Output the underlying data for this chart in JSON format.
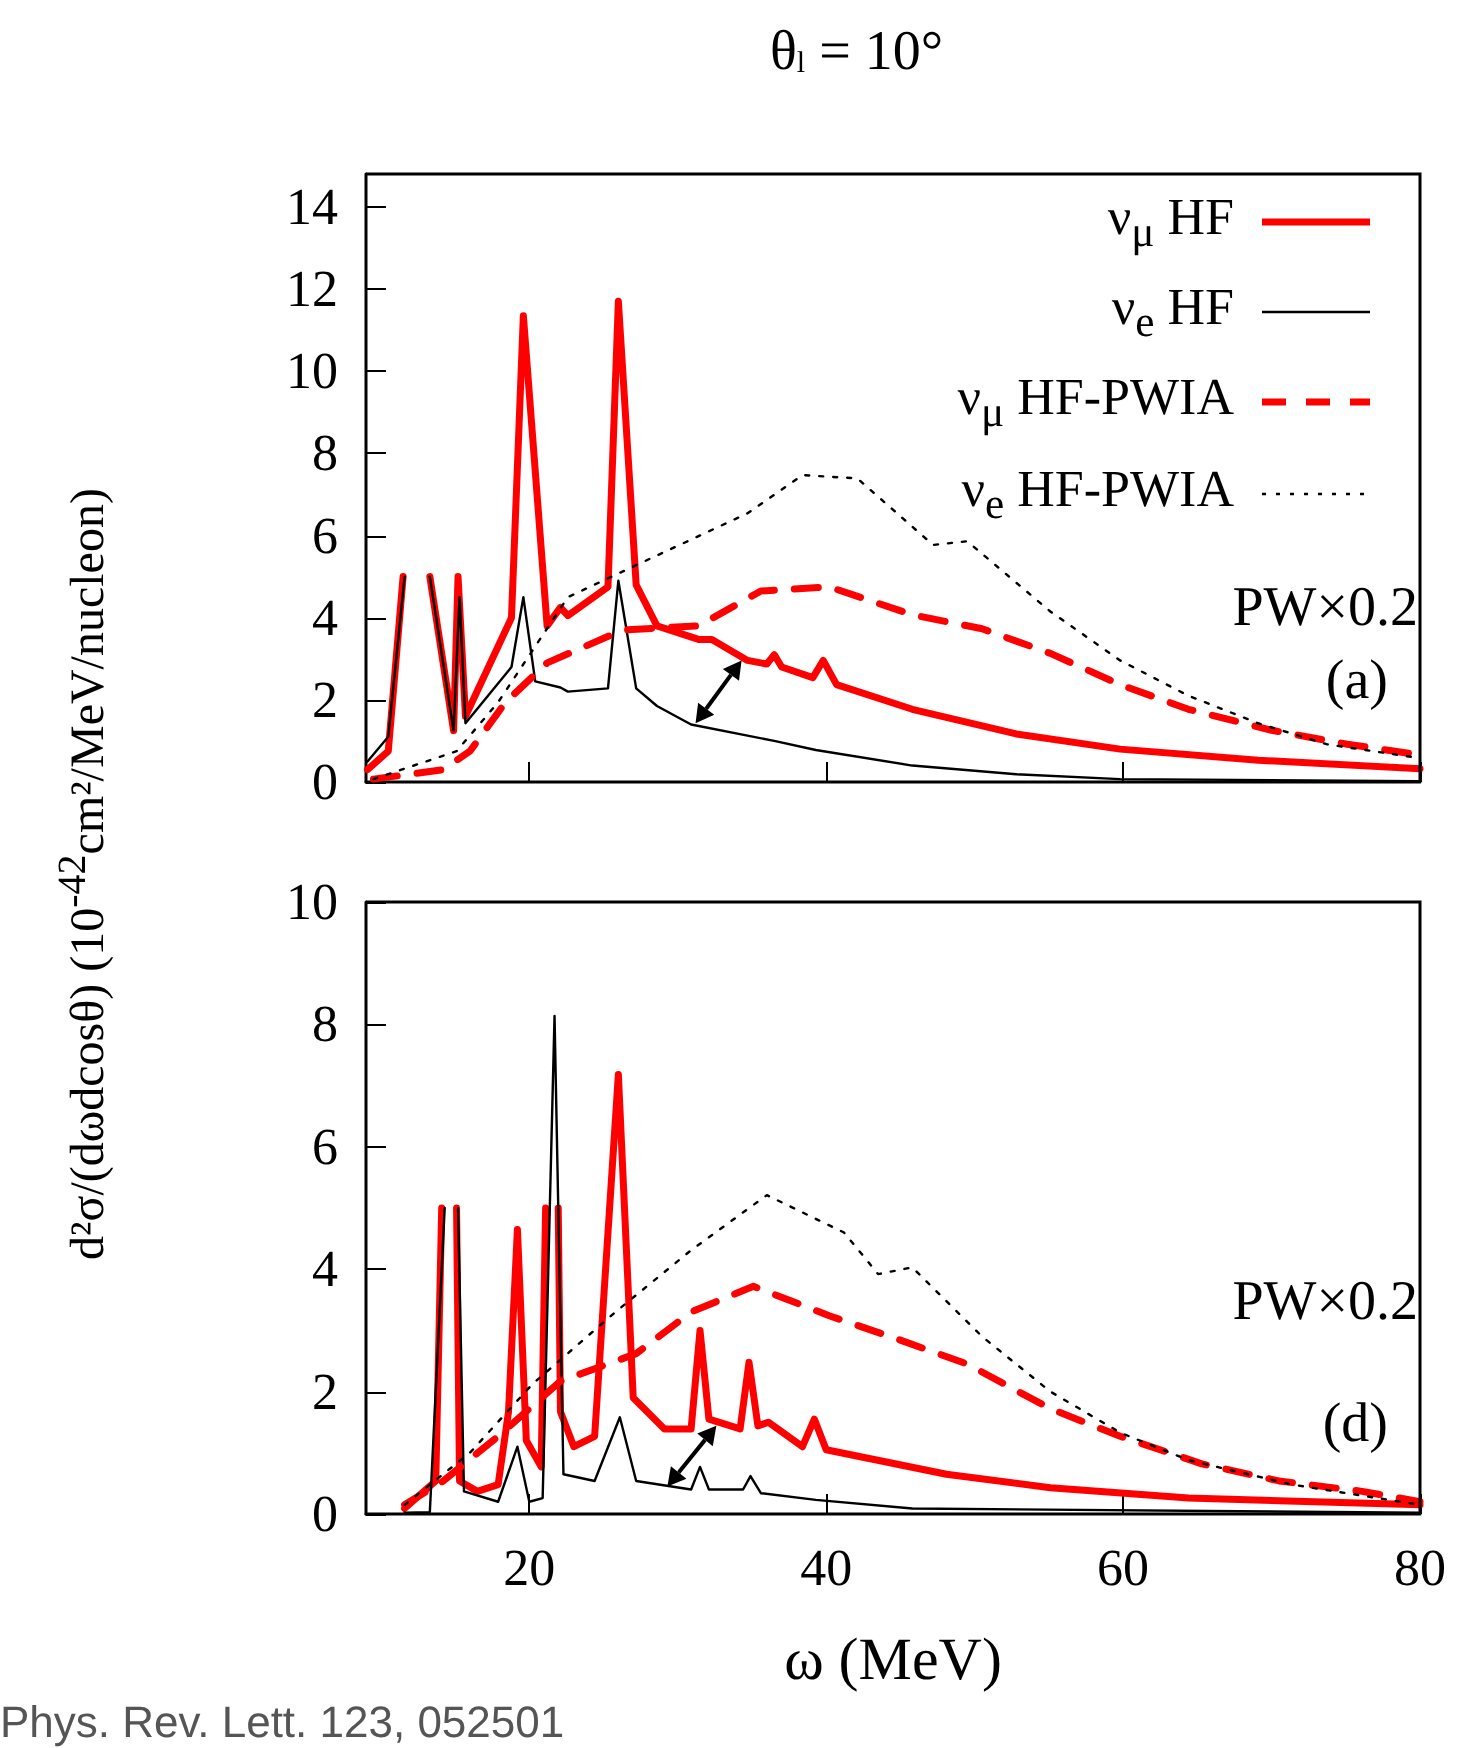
{
  "chart_data": [
    {
      "type": "line",
      "title": "θ$_{l}$ = 10°",
      "ylabel": "d²σ/(dωdcosθ) (10$^{-42}$cm²/MeV/nucleon)",
      "xlim": [
        9,
        80
      ],
      "xticks": [
        20,
        40,
        60,
        80
      ],
      "ylim": [
        0,
        14.8
      ],
      "yticks": [
        0,
        2,
        4,
        6,
        8,
        10,
        12,
        14
      ],
      "tick_labels": "y",
      "grid": false,
      "legend": "top right",
      "marker": "none",
      "annotations": [
        "PW×0.2",
        "(a)"
      ],
      "series": [
        {
          "name": "ν$_{μ}$ HF",
          "color": "#ff0000",
          "line_style": "solid",
          "x": [
            9.1,
            10.5,
            11.5,
            11.8,
            12.7,
            13.3,
            14.9,
            15.2,
            15.7,
            18.8,
            19.6,
            21.2,
            22.1,
            22.6,
            25.3,
            26.0,
            27.2,
            28.6,
            31.4,
            32.3,
            34.7,
            36.0,
            36.5,
            37.0,
            39.1,
            39.8,
            40.7,
            45.8,
            52.8,
            59.8,
            69.1,
            80
          ],
          "values": [
            0.3,
            0.75,
            5.0,
            null,
            null,
            5.0,
            1.25,
            5.0,
            1.6,
            4.0,
            11.35,
            3.8,
            4.25,
            4.05,
            4.75,
            11.7,
            4.8,
            3.8,
            3.47,
            3.47,
            2.96,
            2.87,
            3.1,
            2.8,
            2.54,
            2.96,
            2.37,
            1.77,
            1.17,
            0.8,
            0.53,
            0.32
          ]
        },
        {
          "name": "ν$_{e}$ HF",
          "color": "#000000",
          "line_style": "solid",
          "x": [
            9.1,
            10.5,
            11.6,
            11.9,
            12.5,
            13.3,
            14.9,
            15.3,
            15.7,
            18.8,
            19.6,
            20.4,
            22.1,
            22.6,
            25.3,
            26.0,
            27.2,
            28.6,
            30.9,
            36.5,
            39.3,
            45.8,
            52.8,
            59.8,
            80
          ],
          "values": [
            0.5,
            1.1,
            5.0,
            null,
            null,
            5.0,
            1.25,
            4.5,
            1.43,
            2.8,
            4.5,
            2.45,
            2.3,
            2.2,
            2.28,
            4.9,
            2.28,
            1.85,
            1.4,
            1.0,
            0.78,
            0.4,
            0.19,
            0.07,
            0.02
          ]
        },
        {
          "name": "ν$_{μ}$ HF-PWIA",
          "color": "#ff0000",
          "line_style": "dashed",
          "x": [
            9.5,
            14.2,
            16.0,
            18.4,
            21.2,
            26.3,
            31.4,
            35.6,
            40.2,
            45.8,
            50.5,
            55.1,
            59.8,
            64.4,
            70.0,
            75.1,
            80
          ],
          "values": [
            0.07,
            0.3,
            0.75,
            1.94,
            2.9,
            3.7,
            3.8,
            4.65,
            4.75,
            4.07,
            3.73,
            3.13,
            2.37,
            1.77,
            1.26,
            0.92,
            0.66
          ]
        },
        {
          "name": "ν$_{e}$ HF-PWIA",
          "color": "#000000",
          "line_style": "dotted",
          "x": [
            9.5,
            15.1,
            17.9,
            22.6,
            28.1,
            34.7,
            38.4,
            42.1,
            47.2,
            49.5,
            55.1,
            59.8,
            64.4,
            69.1,
            73.7,
            80
          ],
          "values": [
            0.07,
            0.75,
            1.94,
            4.5,
            5.43,
            6.54,
            7.47,
            7.39,
            5.77,
            5.86,
            4.15,
            2.96,
            2.1,
            1.43,
            0.92,
            0.58
          ]
        }
      ]
    },
    {
      "type": "line",
      "xlabel": "ω (MeV)",
      "xlim": [
        9,
        80
      ],
      "xticks": [
        20,
        40,
        60,
        80
      ],
      "ylim": [
        0,
        10
      ],
      "yticks": [
        0,
        2,
        4,
        6,
        8,
        10
      ],
      "grid": false,
      "legend": false,
      "marker": "none",
      "annotations": [
        "PW×0.2",
        "(d)",
        "Phys. Rev. Lett. 123, 052501"
      ],
      "series": [
        {
          "color": "#ff0000",
          "line_style": "solid",
          "x": [
            11.6,
            13.7,
            14.1,
            14.2,
            15.0,
            15.1,
            15.3,
            16.5,
            17.9,
            18.6,
            19.2,
            19.8,
            20.8,
            21.1,
            21.3,
            21.7,
            21.95,
            22.1,
            23.0,
            24.4,
            26.0,
            27.0,
            29.1,
            30.9,
            31.5,
            32.1,
            34.2,
            34.8,
            35.4,
            36.1,
            38.4,
            39.2,
            40.0,
            48.1,
            55.1,
            64.4,
            80
          ],
          "values": [
            0.09,
            0.54,
            5.0,
            null,
            null,
            5.0,
            0.54,
            0.37,
            0.48,
            1.67,
            4.65,
            1.2,
            0.77,
            5.0,
            null,
            null,
            5.0,
            1.67,
            1.1,
            1.27,
            7.18,
            1.9,
            1.39,
            1.39,
            3.0,
            1.55,
            1.39,
            2.48,
            1.44,
            1.5,
            1.1,
            1.55,
            1.05,
            0.65,
            0.43,
            0.26,
            0.15
          ]
        },
        {
          "color": "#000000",
          "line_style": "solid",
          "x": [
            11.6,
            13.3,
            14.3,
            14.4,
            15.0,
            15.2,
            15.6,
            17.9,
            19.2,
            20.0,
            20.9,
            21.7,
            22.3,
            24.4,
            26.1,
            27.2,
            30.9,
            31.5,
            32.1,
            34.4,
            34.9,
            35.6,
            39.3,
            45.8,
            80
          ],
          "values": [
            0.02,
            0.03,
            5.0,
            null,
            null,
            5.0,
            0.37,
            0.2,
            1.1,
            0.2,
            0.26,
            8.14,
            0.65,
            0.54,
            1.58,
            0.54,
            0.4,
            0.77,
            0.4,
            0.4,
            0.62,
            0.34,
            0.23,
            0.09,
            0.02
          ]
        },
        {
          "color": "#ff0000",
          "line_style": "dashed",
          "x": [
            11.6,
            14.2,
            17.9,
            22.1,
            27.2,
            30.9,
            35.1,
            40.2,
            44.9,
            49.5,
            55.1,
            59.8,
            65.3,
            70.5,
            76.1,
            80
          ],
          "values": [
            0.15,
            0.54,
            1.27,
            2.17,
            2.62,
            3.3,
            3.72,
            3.24,
            2.85,
            2.45,
            1.72,
            1.27,
            0.82,
            0.54,
            0.37,
            0.2
          ]
        },
        {
          "color": "#000000",
          "line_style": "dotted",
          "x": [
            11.6,
            16.0,
            20.2,
            25.8,
            30.9,
            36.0,
            41.2,
            43.5,
            45.8,
            50.5,
            55.1,
            59.8,
            64.4,
            71.4,
            80
          ],
          "values": [
            0.15,
            1.0,
            2.12,
            3.3,
            4.31,
            5.21,
            4.6,
            3.92,
            4.03,
            2.9,
            2.0,
            1.33,
            0.88,
            0.48,
            0.15
          ]
        }
      ]
    }
  ]
}
